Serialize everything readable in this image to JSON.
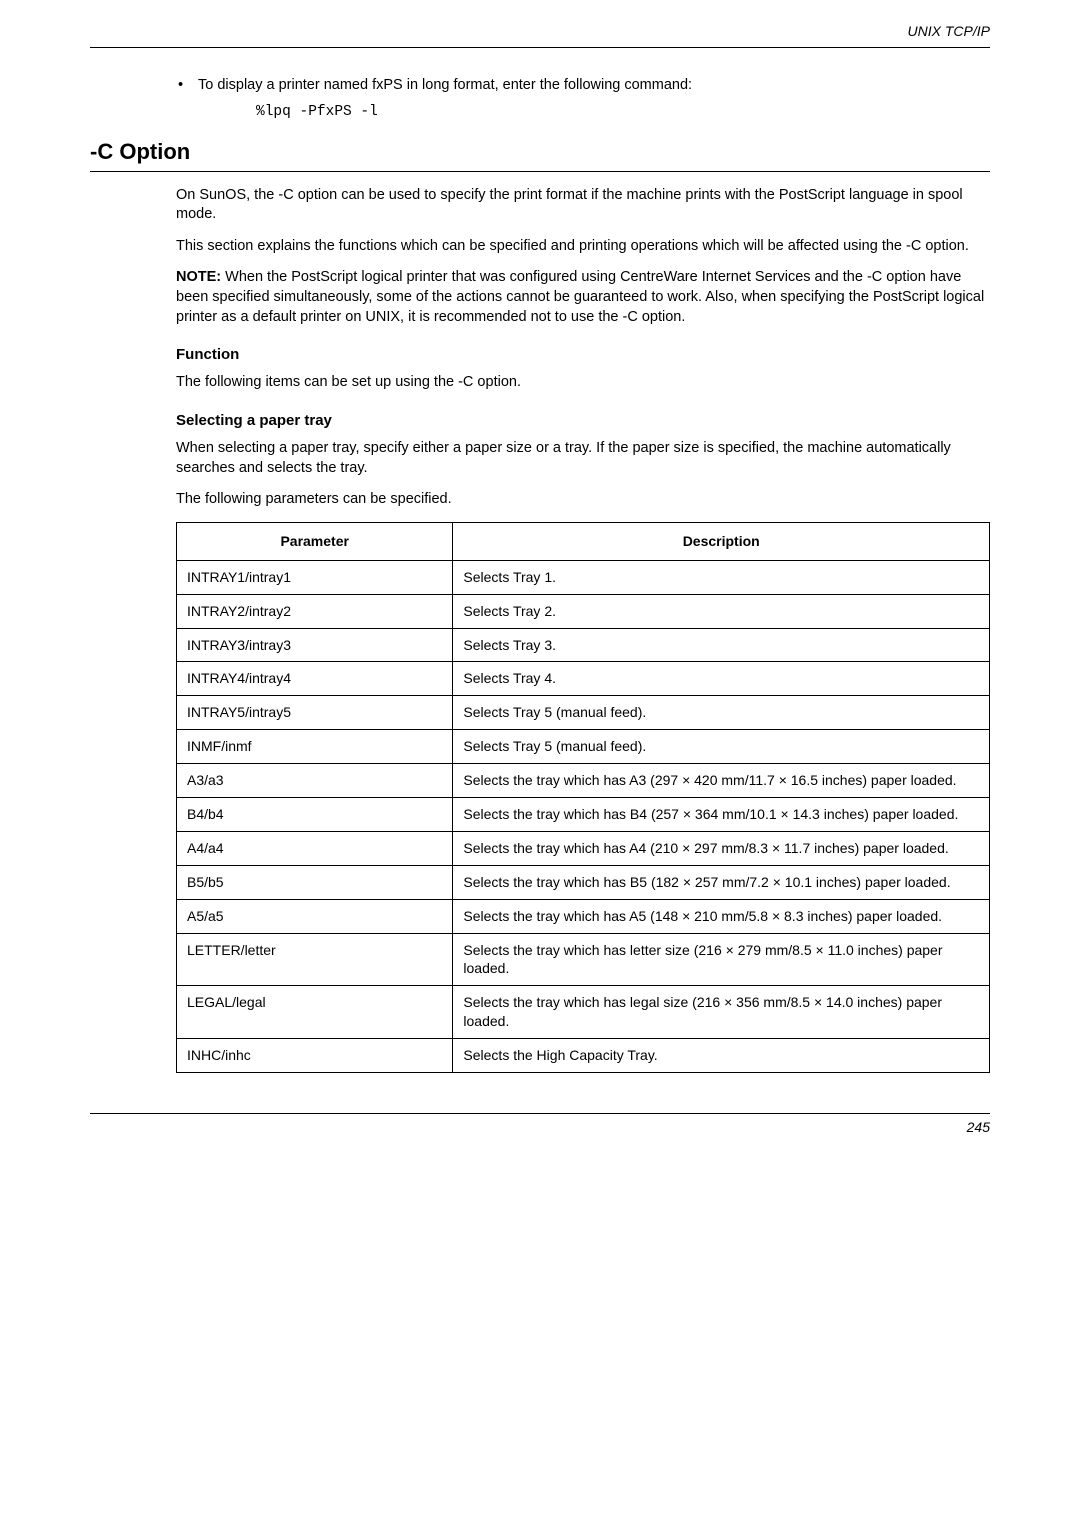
{
  "header": {
    "running_title": "UNIX TCP/IP"
  },
  "intro": {
    "bullet_text": "To display a printer named fxPS in long format, enter the following command:",
    "code": "%lpq -PfxPS -l"
  },
  "section": {
    "heading": "-C Option",
    "para1": "On SunOS, the -C option can be used to specify the print format if the machine prints with the PostScript language in spool mode.",
    "para2": "This section explains the functions which can be specified and printing operations which will be affected using the -C option.",
    "note_label": "NOTE:",
    "note_body": " When the PostScript logical printer that was configured using CentreWare Internet Services and the -C option have been specified simultaneously, some of the actions cannot be guaranteed to work. Also, when specifying the PostScript logical printer as a default printer on UNIX, it is recommended not to use the -C option.",
    "function_head": "Function",
    "function_body": "The following items can be set up using the -C option.",
    "select_head": "Selecting a paper tray",
    "select_body1": "When selecting a paper tray, specify either a paper size or a tray. If the paper size is specified, the machine automatically searches and selects the tray.",
    "select_body2": "The following parameters can be specified."
  },
  "table": {
    "col_param": "Parameter",
    "col_desc": "Description",
    "rows": [
      {
        "p": "INTRAY1/intray1",
        "d": "Selects Tray 1."
      },
      {
        "p": "INTRAY2/intray2",
        "d": "Selects Tray 2."
      },
      {
        "p": "INTRAY3/intray3",
        "d": "Selects Tray 3."
      },
      {
        "p": "INTRAY4/intray4",
        "d": "Selects Tray 4."
      },
      {
        "p": "INTRAY5/intray5",
        "d": "Selects Tray 5 (manual feed)."
      },
      {
        "p": "INMF/inmf",
        "d": "Selects Tray 5 (manual feed)."
      },
      {
        "p": "A3/a3",
        "d": "Selects the tray which has A3 (297 × 420 mm/11.7 × 16.5 inches) paper loaded."
      },
      {
        "p": "B4/b4",
        "d": "Selects the tray which has B4 (257 × 364 mm/10.1 × 14.3 inches) paper loaded."
      },
      {
        "p": "A4/a4",
        "d": "Selects the tray which has A4 (210 × 297 mm/8.3 × 11.7 inches) paper loaded."
      },
      {
        "p": "B5/b5",
        "d": "Selects the tray which has B5 (182 × 257 mm/7.2 × 10.1 inches) paper loaded."
      },
      {
        "p": "A5/a5",
        "d": "Selects the tray which has A5 (148 × 210 mm/5.8 × 8.3 inches) paper loaded."
      },
      {
        "p": "LETTER/letter",
        "d": "Selects the tray which has letter size (216 × 279 mm/8.5 × 11.0 inches) paper loaded."
      },
      {
        "p": "LEGAL/legal",
        "d": "Selects the tray which has legal size (216 × 356 mm/8.5 × 14.0 inches) paper loaded."
      },
      {
        "p": "INHC/inhc",
        "d": "Selects the High Capacity Tray."
      }
    ]
  },
  "footer": {
    "page": "245"
  }
}
